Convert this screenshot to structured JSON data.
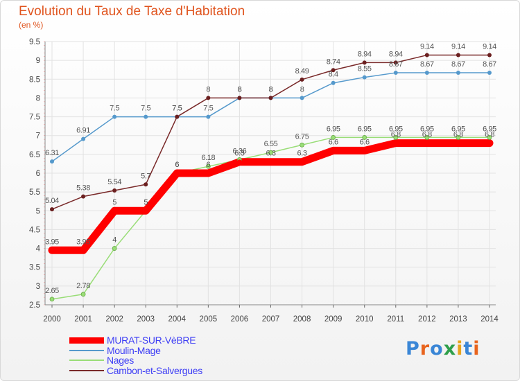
{
  "header": {
    "title": "Evolution du Taux de Taxe d'Habitation",
    "subtitle": "(en %)"
  },
  "logo": {
    "text": "Proxiti",
    "letter_colors": [
      "#3a86d6",
      "#e8641e",
      "#3a86d6",
      "#2f9f4a",
      "#e8a51e",
      "#3a86d6",
      "#e8641e"
    ]
  },
  "chart_data": {
    "type": "line",
    "title": "Evolution du Taux de Taxe d'Habitation",
    "subtitle": "(en %)",
    "x": [
      "2000",
      "2001",
      "2002",
      "2003",
      "2004",
      "2005",
      "2006",
      "2007",
      "2008",
      "2009",
      "2010",
      "2011",
      "2012",
      "2013",
      "2014"
    ],
    "ylim": [
      2.5,
      9.5
    ],
    "yticks": [
      "2.5",
      "3",
      "3.5",
      "4",
      "4.5",
      "5",
      "5.5",
      "6",
      "6.5",
      "7",
      "7.5",
      "8",
      "8.5",
      "9",
      "9.5"
    ],
    "grid": true,
    "legend_position": "bottom-left",
    "series": [
      {
        "name": "MURAT-SUR-VèBRE",
        "color": "#ff0000",
        "values": [
          3.95,
          3.95,
          5,
          5,
          6,
          6,
          6.3,
          6.3,
          6.3,
          6.6,
          6.6,
          6.8,
          6.8,
          6.8,
          6.8
        ],
        "labels": [
          "3.95",
          "3.95",
          "5",
          "5",
          "6",
          "6",
          "6.3",
          "6.3",
          "6.3",
          "6.6",
          "6.6",
          "6.8",
          "6.8",
          "6.8",
          "6.8"
        ]
      },
      {
        "name": "Moulin-Mage",
        "color": "#5599cc",
        "values": [
          6.31,
          6.91,
          7.5,
          7.5,
          7.5,
          7.5,
          8,
          8,
          8,
          8.4,
          8.55,
          8.67,
          8.67,
          8.67,
          8.67
        ],
        "labels": [
          "6.31",
          "6.91",
          "7.5",
          "7.5",
          "7.5",
          "7.5",
          "8",
          "8",
          "8",
          "8.4",
          "8.55",
          "8.67",
          "8.67",
          "8.67",
          "8.67"
        ]
      },
      {
        "name": "Nages",
        "color": "#99dd77",
        "values": [
          2.65,
          2.78,
          4,
          5,
          6,
          6.18,
          6.36,
          6.55,
          6.75,
          6.95,
          6.95,
          6.95,
          6.95,
          6.95,
          6.95
        ],
        "labels": [
          "2.65",
          "2.78",
          "4",
          "5",
          "6",
          "6.18",
          "6.36",
          "6.55",
          "6.75",
          "6.95",
          "6.95",
          "6.95",
          "6.95",
          "6.95",
          "6.95"
        ]
      },
      {
        "name": "Cambon-et-Salvergues",
        "color": "#7a2a2a",
        "values": [
          5.04,
          5.38,
          5.54,
          5.7,
          7.5,
          8,
          8,
          8,
          8.49,
          8.74,
          8.94,
          8.94,
          9.14,
          9.14,
          9.14
        ],
        "labels": [
          "5.04",
          "5.38",
          "5.54",
          "5.7",
          "7.5",
          "8",
          "8",
          "8",
          "8.49",
          "8.74",
          "8.94",
          "8.94",
          "9.14",
          "9.14",
          "9.14"
        ]
      }
    ]
  }
}
